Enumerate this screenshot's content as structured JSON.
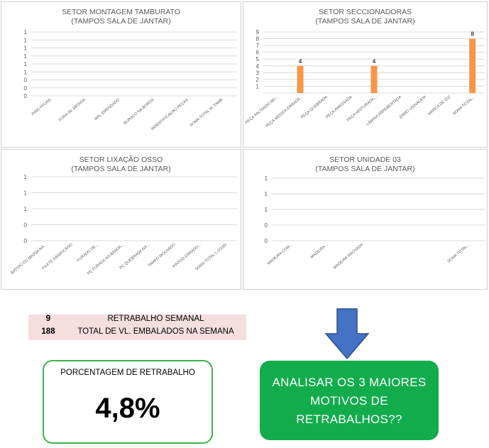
{
  "chart_data": [
    {
      "type": "bar",
      "title": "SETOR  MONTAGEM TAMBURATO",
      "subtitle": "(TAMPOS SALA DE JANTAR)",
      "categories": [
        "PINO FFORA",
        "FORA DE MEDIDA",
        "MAL EMENDADO",
        "BURACO NA BORDA",
        "INDENTIFICAÇÃO PEÇAS",
        "SOMA TOTAL M. TAMB"
      ],
      "values": [
        0,
        0,
        0,
        0,
        0,
        0
      ],
      "y_tick_labels": [
        "1",
        "1",
        "1",
        "1",
        "1",
        "1",
        "0",
        "0",
        "0"
      ],
      "data_labels": [],
      "grid": true,
      "bar_color": "#f79646"
    },
    {
      "type": "bar",
      "title": "SETOR SECCIONADORAS",
      "subtitle": "(TAMPOS SALA DE JANTAR)",
      "categories": [
        "PEÇA FALTANDO BO...",
        "PEÇA MEDIDA ERRADA...",
        "PEÇA QUEBRADA",
        "PEÇA AMASSADA",
        "PEÇA MISTURADA...",
        "LÂMINA ARREBENTADA",
        "ERRO USINAGEM",
        "MARCA DE GIZ",
        "SOMA TOTAL..."
      ],
      "values": [
        0,
        4,
        0,
        0,
        4,
        0,
        0,
        0,
        8
      ],
      "ylim": [
        0,
        9
      ],
      "y_tick_labels": [
        "0",
        "1",
        "2",
        "3",
        "4",
        "5",
        "6",
        "7",
        "8",
        "9"
      ],
      "data_labels": [
        "",
        "4",
        "",
        "",
        "4",
        "",
        "",
        "",
        "8"
      ],
      "grid": true,
      "bar_color": "#f79646"
    },
    {
      "type": "bar",
      "title": "SETOR LIXAÇÃO OSSO",
      "subtitle": "(TAMPOS SALA DE JANTAR)",
      "categories": [
        "BATIDO OU MASSA NA...",
        "FILETE DANIFICADO",
        "FURADO DE...",
        "PÇ FURADA NA BANDA...",
        "PÇ QUEBRADA NA...",
        "TAMPO MOLHADO",
        "PINTOD ERRADO...",
        "SOMA TOTAL L.OSSO"
      ],
      "values": [
        0,
        0,
        0,
        0,
        0,
        0,
        0,
        0
      ],
      "y_tick_labels": [
        "1",
        "1",
        "1",
        "0",
        "0"
      ],
      "data_labels": [],
      "grid": true,
      "bar_color": "#f79646"
    },
    {
      "type": "bar",
      "title": "SETOR UNIDADE 03",
      "subtitle": "(TAMPOS SALA DE JANTAR)",
      "categories": [
        "MADEIRA COM...",
        "MADEIRA...",
        "MADEIRA RACHADA",
        "",
        "",
        "SOMA TOTAL..."
      ],
      "values": [
        0,
        0,
        0,
        0,
        0,
        0
      ],
      "y_tick_labels": [
        "1",
        "1",
        "1",
        "0",
        "0"
      ],
      "data_labels": [],
      "grid": true,
      "bar_color": "#f79646"
    }
  ],
  "summary": {
    "weekly_rework_value": "9",
    "weekly_rework_label": "RETRABALHO SEMANAL",
    "packed_total_value": "188",
    "packed_total_label": "TOTAL DE VL. EMBALADOS NA SEMANA"
  },
  "percentage": {
    "label": "PORCENTAGEM DE RETRABALHO",
    "value": "4,8%"
  },
  "action": {
    "line1": "ANALISAR OS 3 MAIORES",
    "line2": "MOTIVOS DE",
    "line3": "RETRABALHOS??"
  },
  "colors": {
    "bar": "#f79646",
    "arrow": "#4472c4",
    "action_box": "#12ac4d",
    "summary_bg": "#f4dede"
  }
}
